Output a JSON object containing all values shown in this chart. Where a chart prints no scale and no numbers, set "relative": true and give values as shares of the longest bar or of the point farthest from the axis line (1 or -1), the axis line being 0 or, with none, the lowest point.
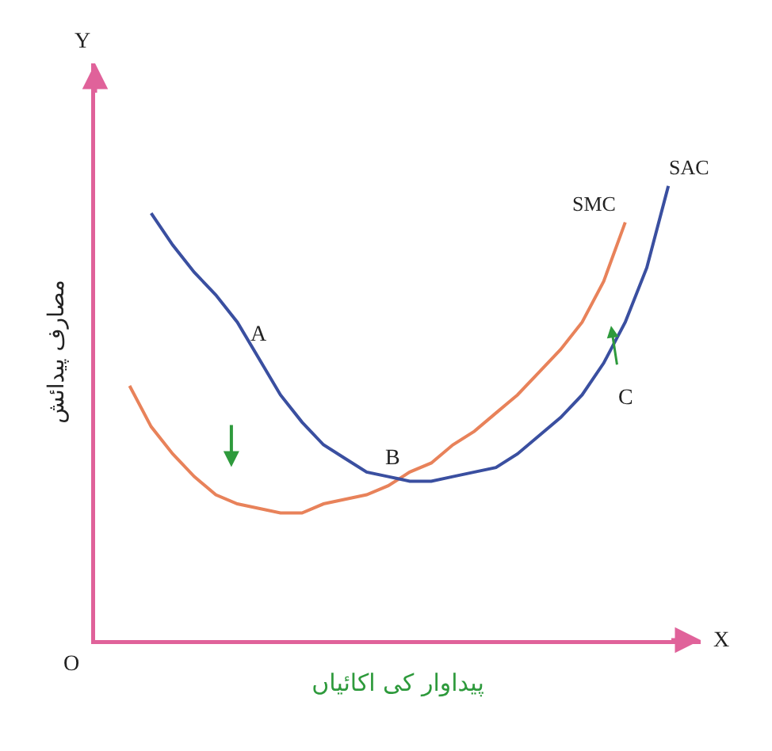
{
  "chart_data": {
    "type": "line",
    "relative": true,
    "xlabel": "پیداوار کی اکائیاں",
    "ylabel": "مصارف پیدائش",
    "categories": [
      null,
      null,
      null,
      null,
      null,
      null,
      null,
      null,
      null,
      null,
      null,
      null,
      null,
      null,
      null,
      null,
      null,
      null,
      null,
      null,
      null,
      null,
      null,
      null,
      null,
      null
    ],
    "series": [
      {
        "name": "SMC",
        "color": "#e8825a",
        "values": [
          0.56,
          0.47,
          0.41,
          0.36,
          0.32,
          0.3,
          0.29,
          0.28,
          0.28,
          0.3,
          0.31,
          0.32,
          0.34,
          0.37,
          0.39,
          0.43,
          0.46,
          0.5,
          0.54,
          0.59,
          0.64,
          0.7,
          0.79,
          0.92,
          null,
          null
        ]
      },
      {
        "name": "SAC",
        "color": "#3a4fa0",
        "values": [
          null,
          0.94,
          0.87,
          0.81,
          0.76,
          0.7,
          0.62,
          0.54,
          0.48,
          0.43,
          0.4,
          0.37,
          0.36,
          0.35,
          0.35,
          0.36,
          0.37,
          0.38,
          0.41,
          0.45,
          0.49,
          0.54,
          0.61,
          0.7,
          0.82,
          1
        ]
      }
    ],
    "annotations": [
      "A",
      "B",
      "C",
      "Y",
      "X",
      "O"
    ],
    "legend": false,
    "grid": false,
    "marker": "none",
    "line_style": "solid"
  }
}
